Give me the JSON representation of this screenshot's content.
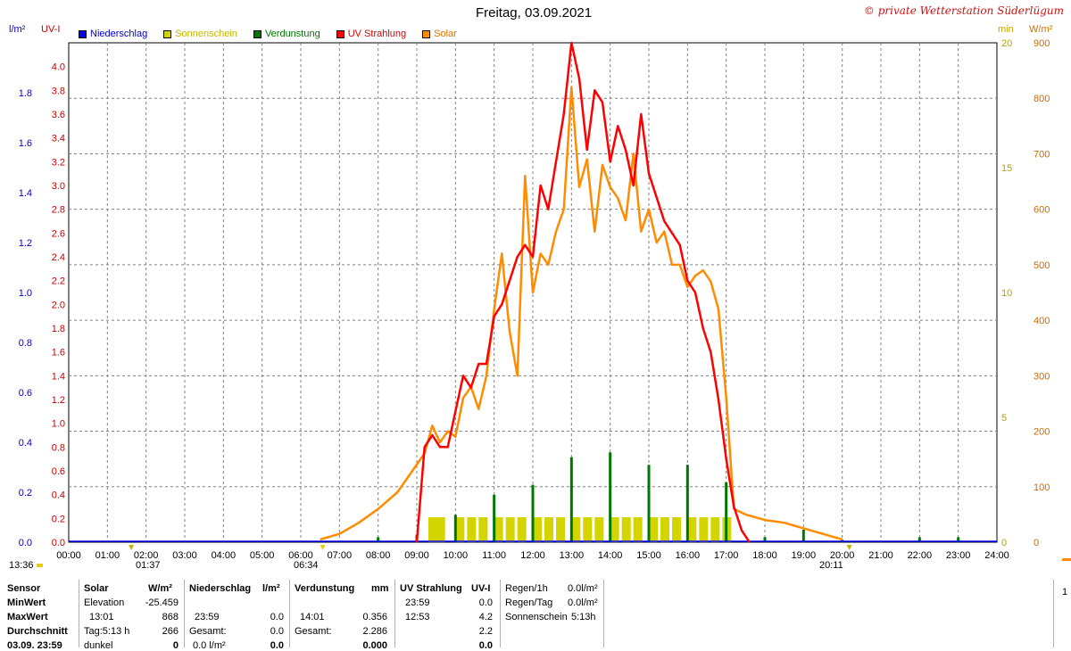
{
  "header": {
    "title": "Freitag, 03.09.2021",
    "copyright": "© private Wetterstation Süderlügum",
    "left_unit_1": "l/m²",
    "left_unit_2": "UV-I",
    "right_unit_1": "min",
    "right_unit_2": "W/m²"
  },
  "colors": {
    "niederschlag": "#0000ff",
    "sonnenschein": "#d4d400",
    "verdunstung": "#007700",
    "uv": "#ff0000",
    "solar": "#ff8c00"
  },
  "chart_data": {
    "type": "line",
    "title": "Freitag, 03.09.2021",
    "x_axis": {
      "ticks": [
        "00:00",
        "01:00",
        "02:00",
        "03:00",
        "04:00",
        "05:00",
        "06:00",
        "07:00",
        "08:00",
        "09:00",
        "10:00",
        "11:00",
        "12:00",
        "13:00",
        "14:00",
        "15:00",
        "16:00",
        "17:00",
        "18:00",
        "19:00",
        "20:00",
        "21:00",
        "22:00",
        "23:00",
        "24:00"
      ],
      "range_hours": [
        0,
        24
      ]
    },
    "axes": {
      "precip_lm2": {
        "ticks": [
          "0.0",
          "0.2",
          "0.4",
          "0.6",
          "0.8",
          "1.0",
          "1.2",
          "1.4",
          "1.6",
          "1.8"
        ],
        "range": [
          0,
          2.0
        ]
      },
      "uv_index": {
        "ticks": [
          "0.0",
          "0.2",
          "0.4",
          "0.6",
          "0.8",
          "1.0",
          "1.2",
          "1.4",
          "1.6",
          "1.8",
          "2.0",
          "2.2",
          "2.4",
          "2.6",
          "2.8",
          "3.0",
          "3.2",
          "3.4",
          "3.6",
          "3.8",
          "4.0"
        ],
        "range": [
          0,
          4.2
        ]
      },
      "sunshine_min": {
        "ticks": [
          "0",
          "5",
          "10",
          "15",
          "20"
        ],
        "range": [
          0,
          20
        ]
      },
      "solar_wm2": {
        "ticks": [
          "0",
          "100",
          "200",
          "300",
          "400",
          "500",
          "600",
          "700",
          "800",
          "900"
        ],
        "range": [
          0,
          900
        ]
      }
    },
    "legend": [
      {
        "name": "Niederschlag",
        "color": "#0000ff"
      },
      {
        "name": "Sonnenschein",
        "color": "#d4d400"
      },
      {
        "name": "Verdunstung",
        "color": "#007700"
      },
      {
        "name": "UV Strahlung",
        "color": "#ff0000"
      },
      {
        "name": "Solar",
        "color": "#ff8c00"
      }
    ],
    "grid": true,
    "legend_position": "top-left",
    "series": [
      {
        "name": "Solar",
        "axis": "solar_wm2",
        "x": [
          6.5,
          7.0,
          7.5,
          8.0,
          8.5,
          9.0,
          9.2,
          9.4,
          9.6,
          9.8,
          10.0,
          10.2,
          10.4,
          10.6,
          10.8,
          11.0,
          11.2,
          11.4,
          11.6,
          11.8,
          12.0,
          12.2,
          12.4,
          12.6,
          12.8,
          13.0,
          13.2,
          13.4,
          13.6,
          13.8,
          14.0,
          14.2,
          14.4,
          14.6,
          14.8,
          15.0,
          15.2,
          15.4,
          15.6,
          15.8,
          16.0,
          16.2,
          16.4,
          16.6,
          16.8,
          17.0,
          17.2,
          17.5,
          18.0,
          18.5,
          19.0,
          19.5,
          20.0
        ],
        "y": [
          5,
          15,
          35,
          60,
          90,
          140,
          160,
          210,
          180,
          200,
          190,
          260,
          280,
          240,
          300,
          420,
          520,
          380,
          300,
          660,
          450,
          520,
          500,
          560,
          600,
          820,
          640,
          690,
          560,
          680,
          640,
          620,
          580,
          700,
          560,
          600,
          540,
          560,
          500,
          500,
          460,
          480,
          490,
          470,
          420,
          260,
          60,
          50,
          40,
          35,
          25,
          15,
          5
        ]
      },
      {
        "name": "UV Strahlung",
        "axis": "uv_index",
        "x": [
          9.0,
          9.2,
          9.4,
          9.6,
          9.8,
          10.0,
          10.2,
          10.4,
          10.6,
          10.8,
          11.0,
          11.2,
          11.4,
          11.6,
          11.8,
          12.0,
          12.2,
          12.4,
          12.6,
          12.8,
          13.0,
          13.2,
          13.4,
          13.6,
          13.8,
          14.0,
          14.2,
          14.4,
          14.6,
          14.8,
          15.0,
          15.2,
          15.4,
          15.6,
          15.8,
          16.0,
          16.2,
          16.4,
          16.6,
          16.8,
          17.0,
          17.2,
          17.4,
          17.6
        ],
        "y": [
          0.0,
          0.8,
          0.9,
          0.8,
          0.8,
          1.1,
          1.4,
          1.3,
          1.5,
          1.5,
          1.9,
          2.0,
          2.2,
          2.4,
          2.5,
          2.4,
          3.0,
          2.8,
          3.2,
          3.6,
          4.2,
          3.9,
          3.3,
          3.8,
          3.7,
          3.2,
          3.5,
          3.3,
          3.0,
          3.6,
          3.1,
          2.9,
          2.7,
          2.6,
          2.5,
          2.2,
          2.1,
          1.8,
          1.6,
          1.2,
          0.7,
          0.3,
          0.1,
          0.0
        ]
      },
      {
        "name": "Sonnenschein",
        "axis": "sunshine_min",
        "x": [
          9.3,
          9.5,
          10.0,
          10.3,
          10.6,
          11.0,
          11.3,
          11.6,
          12.0,
          12.3,
          12.6,
          13.0,
          13.3,
          13.6,
          14.0,
          14.3,
          14.6,
          15.0,
          15.3,
          15.6,
          16.0,
          16.3,
          16.6,
          16.9
        ],
        "y": [
          1,
          1,
          1,
          1,
          1,
          1,
          1,
          1,
          1,
          1,
          1,
          1,
          1,
          1,
          1,
          1,
          1,
          1,
          1,
          1,
          1,
          1,
          1,
          1
        ]
      },
      {
        "name": "Verdunstung",
        "axis": "precip_lm2",
        "x": [
          8.0,
          9.0,
          10.0,
          11.0,
          12.0,
          13.0,
          14.0,
          15.0,
          16.0,
          17.0,
          18.0,
          19.0,
          20.0,
          22.0,
          23.0
        ],
        "y": [
          0.02,
          0.03,
          0.11,
          0.19,
          0.23,
          0.34,
          0.36,
          0.31,
          0.31,
          0.24,
          0.02,
          0.05,
          0.01,
          0.02,
          0.02
        ]
      },
      {
        "name": "Niederschlag",
        "axis": "precip_lm2",
        "x": [
          0,
          24
        ],
        "y": [
          0.0,
          0.0
        ]
      }
    ],
    "markers": {
      "moonrise": "01:37",
      "sunrise": "06:34",
      "moonset": "20:11",
      "left_time": "13:36"
    }
  },
  "stats": {
    "sensor": {
      "header": "Sensor",
      "minwert": "MinWert",
      "maxwert": "MaxWert",
      "durchschnitt": "Durchschnitt",
      "last": "03.09. 23:59"
    },
    "solar": {
      "header": "Solar",
      "unit": "W/m²",
      "min_label": "Elevation",
      "min_value": "-25.459",
      "max_time": "13:01",
      "max_value": "868",
      "avg_label": "Tag:5:13 h",
      "avg_value": "266",
      "last_label": "dunkel",
      "last_value": "0"
    },
    "niederschlag": {
      "header": "Niederschlag",
      "unit": "l/m²",
      "max_time": "23:59",
      "max_value": "0.0",
      "avg_label": "Gesamt:",
      "avg_value": "0.0",
      "last_value": "0.0 l/m²",
      "last_total": "0.0"
    },
    "verdunstung": {
      "header": "Verdunstung",
      "unit": "mm",
      "max_time": "14:01",
      "max_value": "0.356",
      "avg_label": "Gesamt:",
      "avg_value": "2.286",
      "last_value": "0.000"
    },
    "uv": {
      "header": "UV Strahlung",
      "unit": "UV-I",
      "min_time": "23:59",
      "min_value": "0.0",
      "max_time": "12:53",
      "max_value": "4.2",
      "avg_value": "2.2",
      "last_value": "0.0"
    },
    "regen": {
      "h_label": "Regen/1h",
      "h_value": "0.0l/m²",
      "tag_label": "Regen/Tag",
      "tag_value": "0.0l/m²",
      "sun_label": "Sonnenschein",
      "sun_value": "5:13h"
    },
    "extra": "1"
  }
}
